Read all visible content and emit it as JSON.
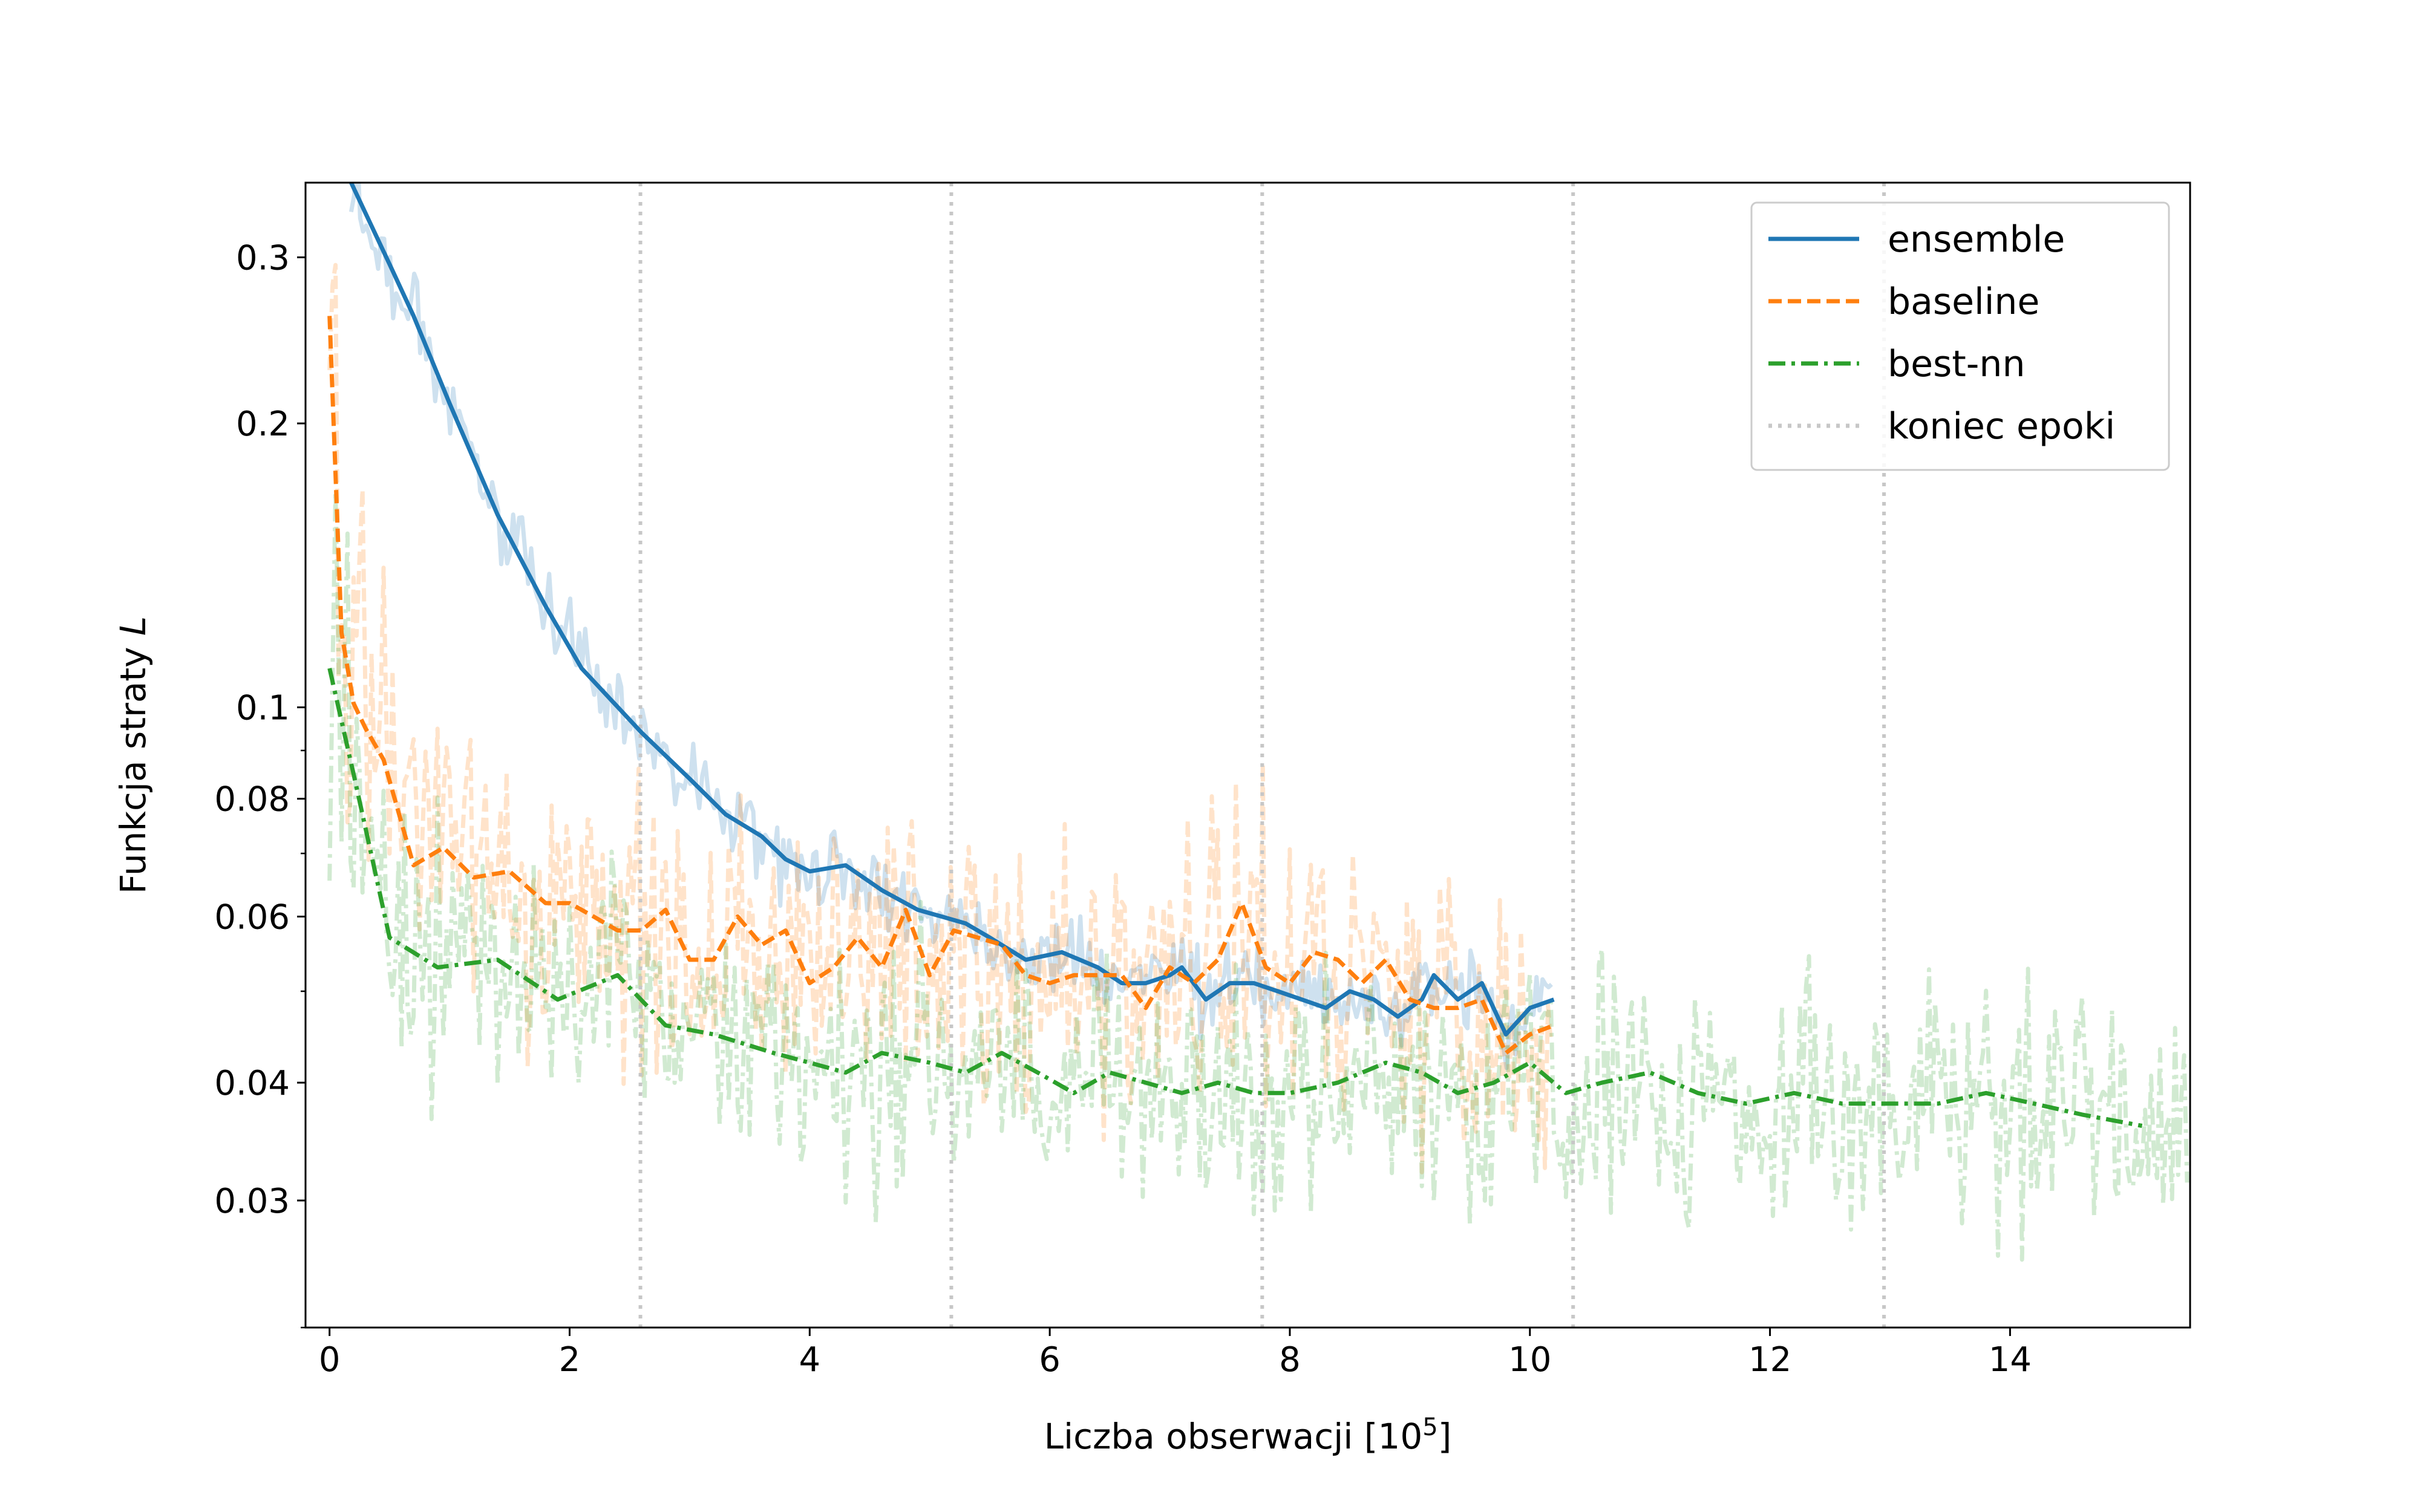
{
  "chart_data": {
    "type": "line",
    "xlabel": "Liczba obserwacji [10",
    "xlabel_superscript": "5",
    "xlabel_suffix": "]",
    "ylabel": "Funkcja straty ",
    "ylabel_italic": "L",
    "xlim": [
      -0.2,
      15.5
    ],
    "ylim": [
      0.022,
      0.36
    ],
    "yscale": "log",
    "xticks": [
      0,
      2,
      4,
      6,
      8,
      10,
      12,
      14
    ],
    "xtick_labels": [
      "0",
      "2",
      "4",
      "6",
      "8",
      "10",
      "12",
      "14"
    ],
    "yticks": [
      0.03,
      0.04,
      0.06,
      0.08,
      0.1,
      0.2,
      0.3
    ],
    "ytick_labels": [
      "0.03",
      "0.04",
      "0.06",
      "0.08",
      "0.1",
      "0.2",
      "0.3"
    ],
    "yminor_ticks": [
      0.05,
      0.07,
      0.09
    ],
    "grid": false,
    "legend_position": "top-right",
    "epoch_ends": [
      2.59,
      5.18,
      7.77,
      10.36,
      12.95
    ],
    "series": [
      {
        "name": "ensemble",
        "color": "#1f77b4",
        "linestyle": "solid",
        "x": [
          0.18,
          0.5,
          0.7,
          1.0,
          1.4,
          1.8,
          2.1,
          2.6,
          3.0,
          3.3,
          3.6,
          3.8,
          4.0,
          4.3,
          4.6,
          4.9,
          5.1,
          5.3,
          5.5,
          5.8,
          6.1,
          6.4,
          6.6,
          6.8,
          7.0,
          7.1,
          7.3,
          7.5,
          7.7,
          7.9,
          8.1,
          8.3,
          8.5,
          8.7,
          8.9,
          9.1,
          9.2,
          9.4,
          9.6,
          9.8,
          10.0,
          10.2
        ],
        "values": [
          0.36,
          0.295,
          0.26,
          0.21,
          0.16,
          0.128,
          0.11,
          0.094,
          0.084,
          0.077,
          0.073,
          0.069,
          0.067,
          0.068,
          0.064,
          0.061,
          0.06,
          0.059,
          0.057,
          0.054,
          0.055,
          0.053,
          0.051,
          0.051,
          0.052,
          0.053,
          0.049,
          0.051,
          0.051,
          0.05,
          0.049,
          0.048,
          0.05,
          0.049,
          0.047,
          0.049,
          0.052,
          0.049,
          0.051,
          0.045,
          0.048,
          0.049
        ],
        "noisy": true,
        "noise_spread": 0.05,
        "noise_end_x": 10.2
      },
      {
        "name": "baseline",
        "color": "#ff7f0e",
        "linestyle": "dashed",
        "x": [
          0.0,
          0.1,
          0.2,
          0.3,
          0.45,
          0.7,
          0.95,
          1.2,
          1.5,
          1.8,
          2.0,
          2.2,
          2.4,
          2.6,
          2.8,
          3.0,
          3.2,
          3.4,
          3.6,
          3.8,
          4.0,
          4.2,
          4.4,
          4.6,
          4.8,
          5.0,
          5.2,
          5.4,
          5.6,
          5.8,
          6.0,
          6.2,
          6.4,
          6.6,
          6.8,
          7.0,
          7.2,
          7.4,
          7.6,
          7.8,
          8.0,
          8.2,
          8.4,
          8.6,
          8.8,
          9.0,
          9.2,
          9.4,
          9.6,
          9.8,
          10.0,
          10.2
        ],
        "values": [
          0.26,
          0.12,
          0.101,
          0.095,
          0.088,
          0.068,
          0.071,
          0.066,
          0.067,
          0.062,
          0.062,
          0.06,
          0.058,
          0.058,
          0.061,
          0.054,
          0.054,
          0.06,
          0.056,
          0.058,
          0.051,
          0.053,
          0.057,
          0.053,
          0.061,
          0.052,
          0.058,
          0.057,
          0.056,
          0.052,
          0.051,
          0.052,
          0.052,
          0.052,
          0.048,
          0.053,
          0.051,
          0.054,
          0.062,
          0.053,
          0.051,
          0.055,
          0.054,
          0.051,
          0.054,
          0.049,
          0.048,
          0.048,
          0.049,
          0.043,
          0.045,
          0.046
        ],
        "noisy": true,
        "noise_spread": 0.18,
        "noise_end_x": 10.2
      },
      {
        "name": "best-nn",
        "color": "#2ca02c",
        "linestyle": "dashdot",
        "x": [
          0.0,
          0.2,
          0.5,
          0.9,
          1.4,
          1.9,
          2.4,
          2.8,
          3.2,
          3.7,
          4.0,
          4.3,
          4.6,
          5.0,
          5.3,
          5.6,
          5.9,
          6.2,
          6.5,
          6.8,
          7.1,
          7.4,
          7.7,
          8.0,
          8.4,
          8.8,
          9.1,
          9.4,
          9.7,
          10.0,
          10.3,
          10.6,
          11.0,
          11.4,
          11.8,
          12.2,
          12.6,
          13.0,
          13.4,
          13.8,
          14.2,
          14.6,
          15.1
        ],
        "values": [
          0.11,
          0.085,
          0.057,
          0.053,
          0.054,
          0.049,
          0.052,
          0.046,
          0.045,
          0.043,
          0.042,
          0.041,
          0.043,
          0.042,
          0.041,
          0.043,
          0.041,
          0.039,
          0.041,
          0.04,
          0.039,
          0.04,
          0.039,
          0.039,
          0.04,
          0.042,
          0.041,
          0.039,
          0.04,
          0.042,
          0.039,
          0.04,
          0.041,
          0.039,
          0.038,
          0.039,
          0.038,
          0.038,
          0.038,
          0.039,
          0.038,
          0.037,
          0.036
        ],
        "noisy": true,
        "noise_spread": 0.16,
        "noise_end_x": 15.5
      },
      {
        "name": "koniec epoki",
        "color": "#c7c7c7",
        "linestyle": "dotted"
      }
    ]
  }
}
